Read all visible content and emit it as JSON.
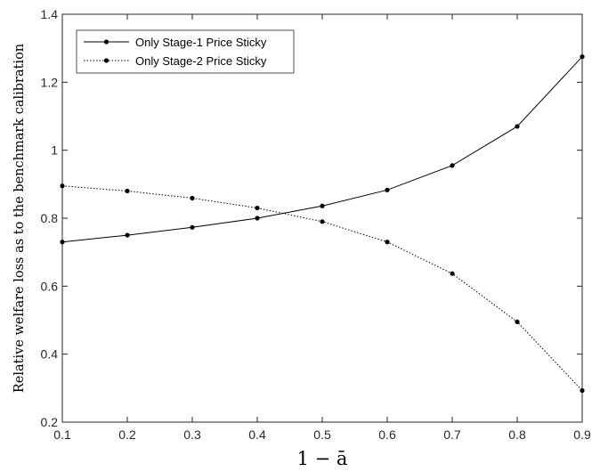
{
  "chart_data": {
    "type": "line",
    "x": [
      0.1,
      0.2,
      0.3,
      0.4,
      0.5,
      0.6,
      0.7,
      0.8,
      0.9
    ],
    "series": [
      {
        "name": "Only Stage-1 Price Sticky",
        "style": "solid",
        "values": [
          0.73,
          0.75,
          0.773,
          0.8,
          0.836,
          0.883,
          0.955,
          1.07,
          1.275
        ]
      },
      {
        "name": "Only Stage-2 Price Sticky",
        "style": "dotted",
        "values": [
          0.895,
          0.88,
          0.859,
          0.83,
          0.79,
          0.73,
          0.637,
          0.495,
          0.293
        ]
      }
    ],
    "xlim": [
      0.1,
      0.9
    ],
    "ylim": [
      0.2,
      1.4
    ],
    "xticks": [
      0.1,
      0.2,
      0.3,
      0.4,
      0.5,
      0.6,
      0.7,
      0.8,
      0.9
    ],
    "yticks": [
      0.2,
      0.4,
      0.6,
      0.8,
      1,
      1.2,
      1.4
    ],
    "xtick_labels": [
      "0.1",
      "0.2",
      "0.3",
      "0.4",
      "0.5",
      "0.6",
      "0.7",
      "0.8",
      "0.9"
    ],
    "ytick_labels": [
      "0.2",
      "0.4",
      "0.6",
      "0.8",
      "1",
      "1.2",
      "1.4"
    ],
    "xlabel": "1 − ā",
    "ylabel": "Relative welfare loss as to the benchmark calibration",
    "legend_position": "top-left",
    "grid": false
  }
}
